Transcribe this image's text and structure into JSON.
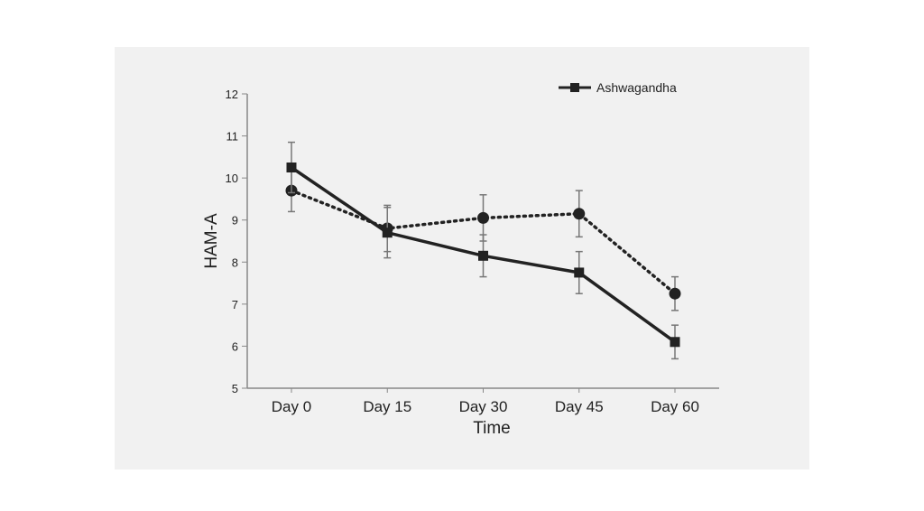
{
  "chart_data": {
    "type": "line",
    "xlabel": "Time",
    "ylabel": "HAM-A",
    "categories": [
      "Day 0",
      "Day 15",
      "Day 30",
      "Day 45",
      "Day 60"
    ],
    "ylim": [
      5,
      12
    ],
    "yticks": [
      5,
      6,
      7,
      8,
      9,
      10,
      11,
      12
    ],
    "legend_position": "top-right",
    "grid": false,
    "series": [
      {
        "name": "Ashwagandha",
        "marker": "square",
        "line_style": "solid",
        "color": "#222222",
        "values": [
          10.25,
          8.7,
          8.15,
          7.75,
          6.1
        ],
        "error": [
          0.6,
          0.6,
          0.5,
          0.5,
          0.4
        ]
      },
      {
        "name": "",
        "marker": "circle",
        "line_style": "dotted",
        "color": "#222222",
        "values": [
          9.7,
          8.8,
          9.05,
          9.15,
          7.25
        ],
        "error": [
          0.5,
          0.55,
          0.55,
          0.55,
          0.4
        ]
      }
    ]
  }
}
